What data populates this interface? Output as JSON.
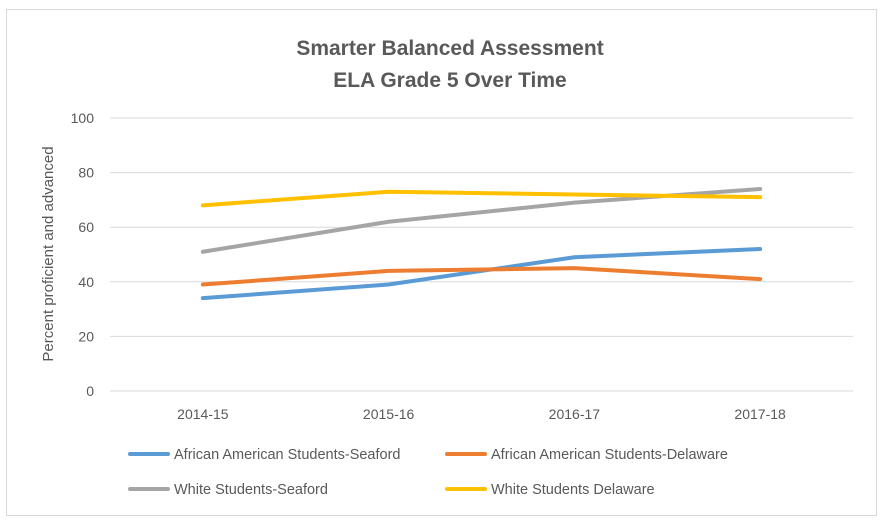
{
  "chart_data": {
    "type": "line",
    "title_lines": [
      "Smarter Balanced Assessment",
      "ELA Grade 5 Over Time"
    ],
    "xlabel": "",
    "ylabel": "Percent proficient and advanced",
    "categories": [
      "2014-15",
      "2015-16",
      "2016-17",
      "2017-18"
    ],
    "ylim": [
      0,
      100
    ],
    "yticks": [
      0,
      20,
      40,
      60,
      80,
      100
    ],
    "grid": true,
    "legend_position": "bottom",
    "series": [
      {
        "name": "African American Students-Seaford",
        "color": "#5B9BD5",
        "values": [
          34,
          39,
          49,
          52
        ]
      },
      {
        "name": "African American Students-Delaware",
        "color": "#ED7D31",
        "values": [
          39,
          44,
          45,
          41
        ]
      },
      {
        "name": "White Students-Seaford",
        "color": "#A5A5A5",
        "values": [
          51,
          62,
          69,
          74
        ]
      },
      {
        "name": "White Students Delaware",
        "color": "#FFC000",
        "values": [
          68,
          73,
          72,
          71
        ]
      }
    ]
  }
}
